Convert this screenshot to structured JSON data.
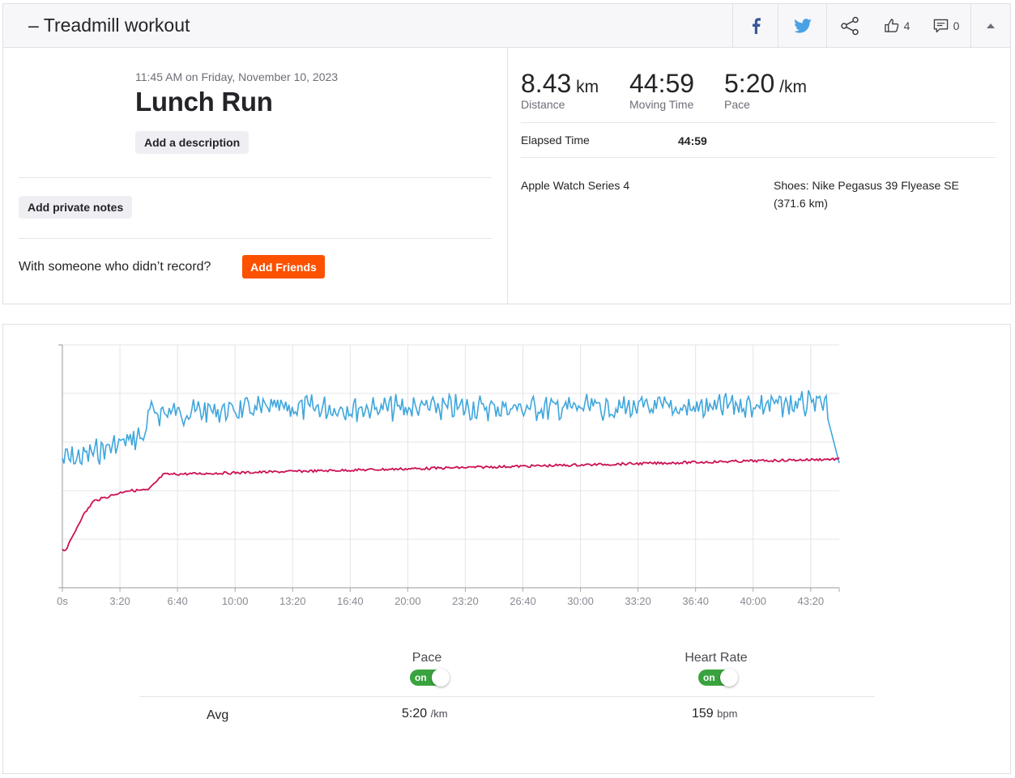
{
  "header": {
    "title": "– Treadmill workout",
    "kudos_count": "4",
    "comments_count": "0"
  },
  "activity": {
    "timestamp": "11:45 AM on Friday, November 10, 2023",
    "name": "Lunch Run",
    "add_description_label": "Add a description",
    "add_notes_label": "Add private notes",
    "with_someone_text": "With someone who didn’t record?",
    "add_friends_label": "Add Friends"
  },
  "stats": [
    {
      "value": "8.43",
      "unit": " km",
      "label": "Distance"
    },
    {
      "value": "44:59",
      "unit": "",
      "label": "Moving Time"
    },
    {
      "value": "5:20",
      "unit": " /km",
      "label": "Pace"
    }
  ],
  "elapsed": {
    "label": "Elapsed Time",
    "value": "44:59"
  },
  "device": "Apple Watch Series 4",
  "shoes": "Shoes: Nike Pegasus 39 Flyease SE",
  "shoes_distance": "(371.6 km)",
  "colors": {
    "brand": "#fc5200",
    "pace": "#3fa6dc",
    "heart_rate": "#cc1155",
    "toggle_on": "#3aa33f"
  },
  "chart_data": {
    "type": "line",
    "x_ticks": [
      "0s",
      "3:20",
      "6:40",
      "10:00",
      "13:20",
      "16:40",
      "20:00",
      "23:20",
      "26:40",
      "30:00",
      "33:20",
      "36:40",
      "40:00",
      "43:20"
    ],
    "x_max_seconds": 2699,
    "grid": true,
    "series": [
      {
        "name": "Pace",
        "color": "#3fa6dc"
      },
      {
        "name": "Heart Rate",
        "color": "#cc1155"
      }
    ]
  },
  "legend": {
    "pace_label": "Pace",
    "hr_label": "Heart Rate",
    "toggle_text": "on",
    "avg_label": "Avg",
    "pace_avg_value": "5:20",
    "pace_avg_unit": "/km",
    "hr_avg_value": "159",
    "hr_avg_unit": "bpm"
  }
}
